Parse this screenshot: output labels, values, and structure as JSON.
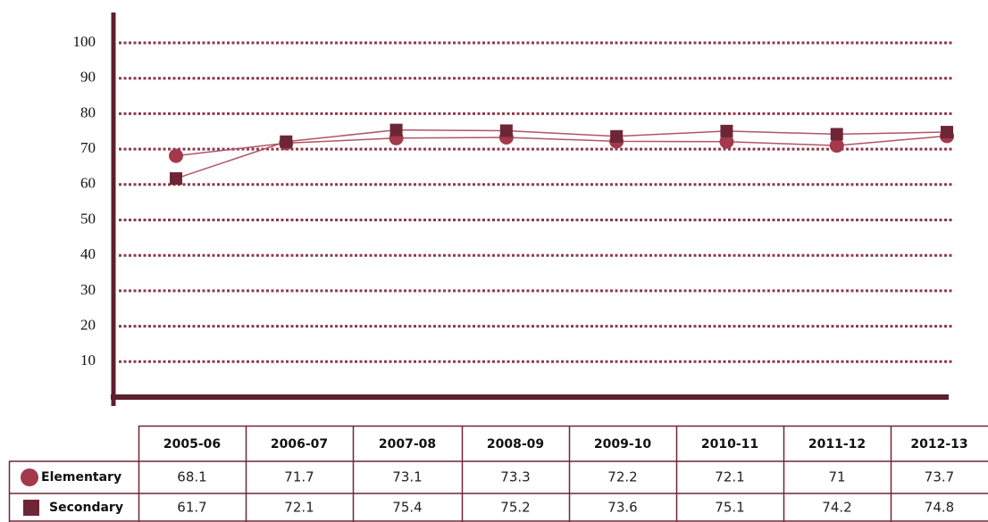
{
  "chart_data": {
    "type": "line",
    "categories": [
      "2005-06",
      "2006-07",
      "2007-08",
      "2008-09",
      "2009-10",
      "2010-11",
      "2011-12",
      "2012-13"
    ],
    "series": [
      {
        "name": "Elementary",
        "color": "#a3394b",
        "marker": "circle",
        "values": [
          68.1,
          71.7,
          73.1,
          73.3,
          72.2,
          72.1,
          71,
          73.7
        ]
      },
      {
        "name": "Secondary",
        "color": "#6e2637",
        "marker": "square",
        "values": [
          61.7,
          72.1,
          75.4,
          75.2,
          73.6,
          75.1,
          74.2,
          74.8
        ]
      }
    ],
    "ylim": [
      0,
      100
    ],
    "yticks": [
      10,
      20,
      30,
      40,
      50,
      60,
      70,
      80,
      90,
      100
    ],
    "grid": true
  }
}
